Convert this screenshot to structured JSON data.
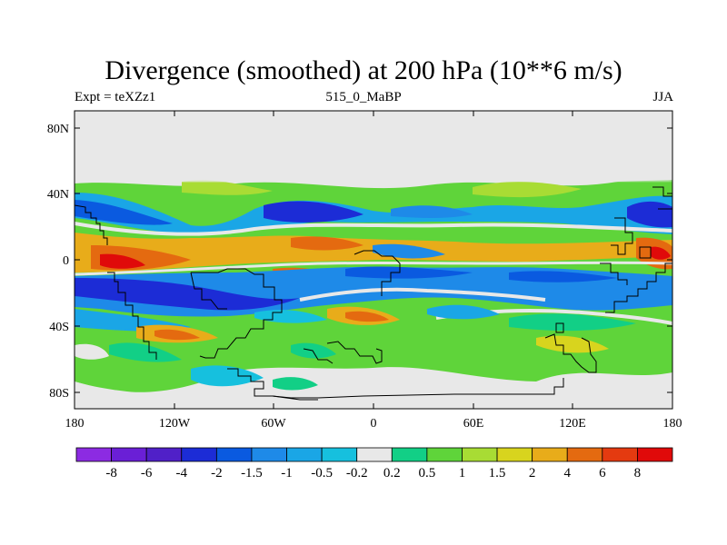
{
  "title": "Divergence (smoothed) at 200 hPa (10**6 m/s)",
  "subtitle_left": "Expt = teXZz1",
  "subtitle_center": "515_0_MaBP",
  "subtitle_right": "JJA",
  "map": {
    "lat_labels": [
      "80N",
      "40N",
      "0",
      "40S",
      "80S"
    ],
    "lon_labels": [
      "180",
      "120W",
      "60W",
      "0",
      "60E",
      "120E",
      "180"
    ],
    "no_data_color": "#e8e8e8"
  },
  "colorbar": {
    "colors": [
      "#8c2be2",
      "#6a1fd6",
      "#5020c8",
      "#1c2cd6",
      "#0a5ae0",
      "#1e8ae8",
      "#1aa6e6",
      "#16c0de",
      "#e8e8e8",
      "#12cf86",
      "#5fd43a",
      "#a8dc34",
      "#d8d41e",
      "#e8ac1a",
      "#e46a10",
      "#e43a10",
      "#e00a0a"
    ],
    "labels": [
      "-8",
      "-6",
      "-4",
      "-2",
      "-1.5",
      "-1",
      "-0.5",
      "-0.2",
      "0.2",
      "0.5",
      "1",
      "1.5",
      "2",
      "4",
      "6",
      "8"
    ]
  }
}
